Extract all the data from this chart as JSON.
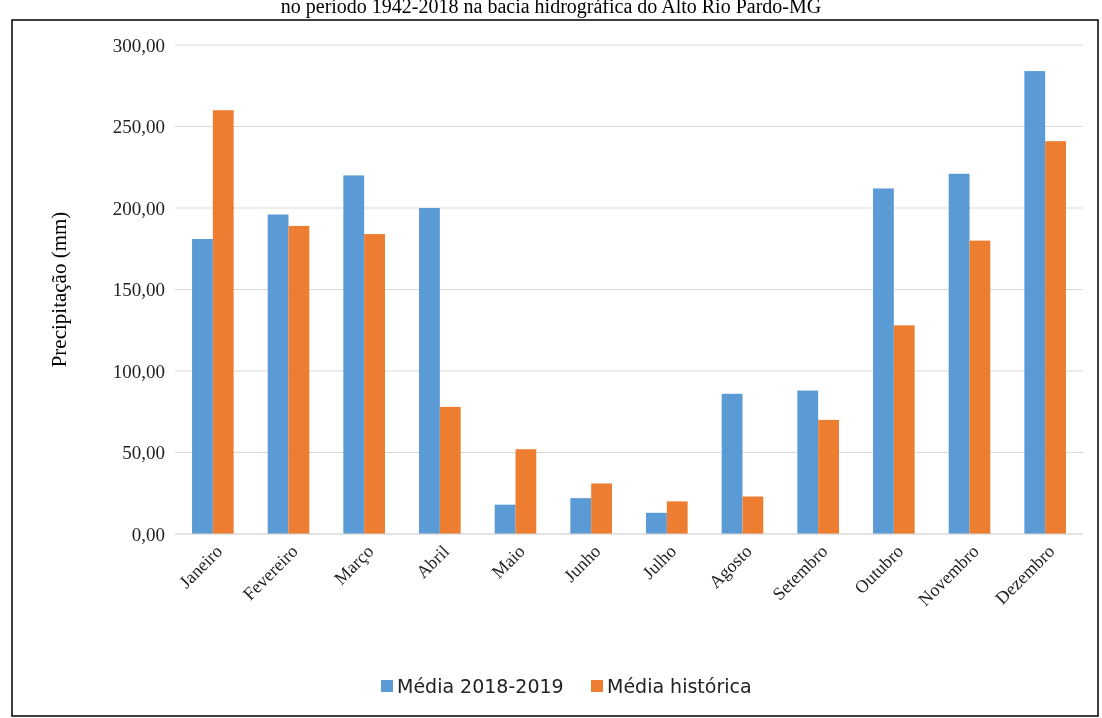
{
  "chart_data": {
    "type": "bar",
    "title": "no período 1942-2018 na bacia hidrográfica do Alto Rio Pardo-MG",
    "ylabel": "Precipitação (mm)",
    "categories": [
      "Janeiro",
      "Fevereiro",
      "Março",
      "Abril",
      "Maio",
      "Junho",
      "Julho",
      "Agosto",
      "Setembro",
      "Outubro",
      "Novembro",
      "Dezembro"
    ],
    "series": [
      {
        "name": "Média 2018-2019",
        "color": "#5b9bd5",
        "values": [
          181,
          196,
          220,
          200,
          18,
          22,
          13,
          86,
          88,
          212,
          221,
          284
        ]
      },
      {
        "name": "Média histórica",
        "color": "#ed7d31",
        "values": [
          260,
          189,
          184,
          78,
          52,
          31,
          20,
          23,
          70,
          128,
          180,
          241
        ]
      }
    ],
    "ylim": [
      0,
      300
    ],
    "yticks": [
      {
        "value": 0,
        "label": "0,00"
      },
      {
        "value": 50,
        "label": "50,00"
      },
      {
        "value": 100,
        "label": "100,00"
      },
      {
        "value": 150,
        "label": "150,00"
      },
      {
        "value": 200,
        "label": "200,00"
      },
      {
        "value": 250,
        "label": "250,00"
      },
      {
        "value": 300,
        "label": "300,00"
      }
    ],
    "grid": "y",
    "legend": "bottom"
  }
}
